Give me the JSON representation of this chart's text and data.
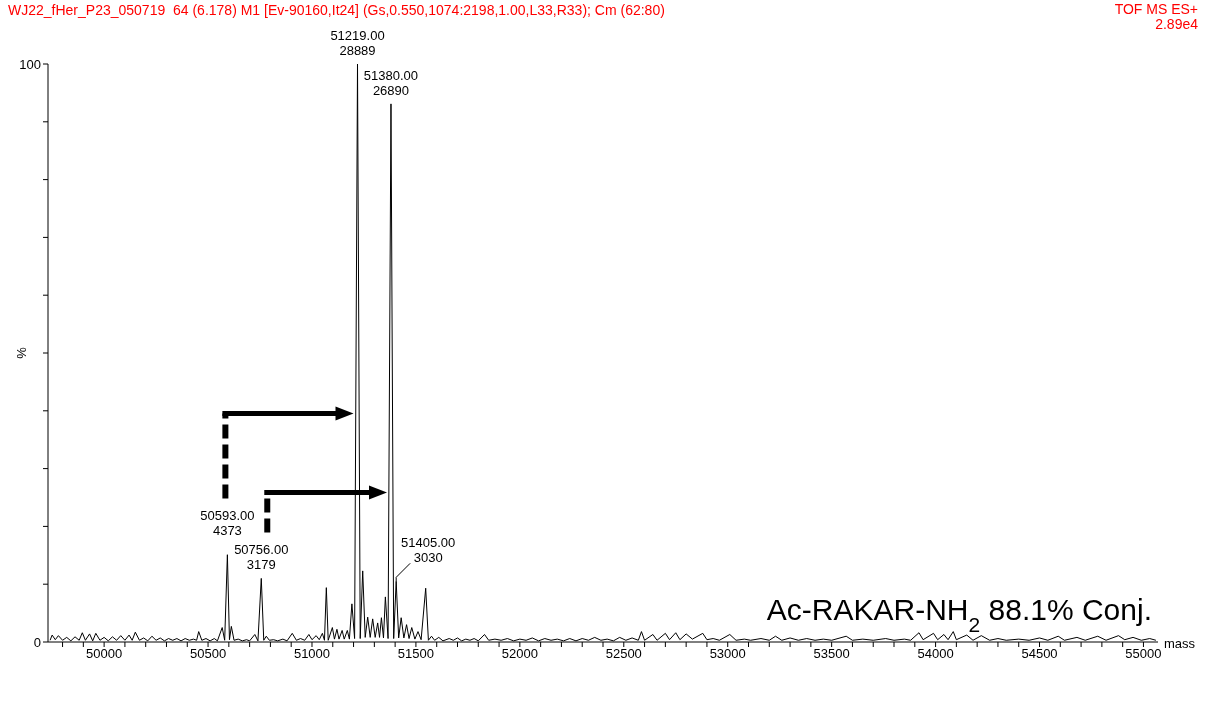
{
  "chart_data": {
    "type": "line",
    "title": "WJ22_fHer_P23_050719  64 (6.178) M1 [Ev-90160,It24] (Gs,0.550,1074:2198,1.00,L33,R33); Cm (62:80)",
    "xlabel": "mass",
    "ylabel": "%",
    "color": "#000000",
    "marker": "none",
    "line_style": "solid",
    "xlim": [
      49730,
      55070
    ],
    "ylim": [
      0,
      100
    ],
    "xticks": [
      {
        "value": 49800,
        "label": null
      },
      {
        "value": 49900,
        "label": null
      },
      50000,
      {
        "value": 50100,
        "label": null
      },
      {
        "value": 50200,
        "label": null
      },
      {
        "value": 50300,
        "label": null
      },
      {
        "value": 50400,
        "label": null
      },
      50500,
      {
        "value": 50600,
        "label": null
      },
      {
        "value": 50700,
        "label": null
      },
      {
        "value": 50800,
        "label": null
      },
      {
        "value": 50900,
        "label": null
      },
      51000,
      {
        "value": 51100,
        "label": null
      },
      {
        "value": 51200,
        "label": null
      },
      {
        "value": 51300,
        "label": null
      },
      {
        "value": 51400,
        "label": null
      },
      51500,
      {
        "value": 51600,
        "label": null
      },
      {
        "value": 51700,
        "label": null
      },
      {
        "value": 51800,
        "label": null
      },
      {
        "value": 51900,
        "label": null
      },
      52000,
      {
        "value": 52100,
        "label": null
      },
      {
        "value": 52200,
        "label": null
      },
      {
        "value": 52300,
        "label": null
      },
      {
        "value": 52400,
        "label": null
      },
      52500,
      {
        "value": 52600,
        "label": null
      },
      {
        "value": 52700,
        "label": null
      },
      {
        "value": 52800,
        "label": null
      },
      {
        "value": 52900,
        "label": null
      },
      53000,
      {
        "value": 53100,
        "label": null
      },
      {
        "value": 53200,
        "label": null
      },
      {
        "value": 53300,
        "label": null
      },
      {
        "value": 53400,
        "label": null
      },
      53500,
      {
        "value": 53600,
        "label": null
      },
      {
        "value": 53700,
        "label": null
      },
      {
        "value": 53800,
        "label": null
      },
      {
        "value": 53900,
        "label": null
      },
      54000,
      {
        "value": 54100,
        "label": null
      },
      {
        "value": 54200,
        "label": null
      },
      {
        "value": 54300,
        "label": null
      },
      {
        "value": 54400,
        "label": null
      },
      54500,
      {
        "value": 54600,
        "label": null
      },
      {
        "value": 54700,
        "label": null
      },
      {
        "value": 54800,
        "label": null
      },
      {
        "value": 54900,
        "label": null
      },
      55000
    ],
    "yticks": [
      0,
      {
        "value": 10,
        "label": null
      },
      {
        "value": 20,
        "label": null
      },
      {
        "value": 30,
        "label": null
      },
      {
        "value": 40,
        "label": null
      },
      {
        "value": 50,
        "label": null
      },
      {
        "value": 60,
        "label": null
      },
      {
        "value": 70,
        "label": null
      },
      {
        "value": 80,
        "label": null
      },
      {
        "value": 90,
        "label": null
      },
      100
    ],
    "x": [
      49740,
      49750,
      49765,
      49780,
      49800,
      49820,
      49840,
      49860,
      49880,
      49895,
      49910,
      49930,
      49945,
      49960,
      49980,
      50000,
      50020,
      50040,
      50060,
      50080,
      50100,
      50120,
      50135,
      50150,
      50170,
      50190,
      50210,
      50230,
      50250,
      50270,
      50290,
      50310,
      50330,
      50350,
      50370,
      50390,
      50410,
      50430,
      50445,
      50455,
      50470,
      50490,
      50510,
      50530,
      50545,
      50568,
      50580,
      50593,
      50603,
      50612,
      50625,
      50645,
      50665,
      50685,
      50700,
      50725,
      50740,
      50756,
      50768,
      50780,
      50795,
      50815,
      50835,
      50860,
      50880,
      50905,
      50925,
      50945,
      50965,
      50985,
      51000,
      51020,
      51035,
      51050,
      51060,
      51069,
      51078,
      51098,
      51108,
      51120,
      51130,
      51145,
      51155,
      51170,
      51180,
      51192,
      51205,
      51219,
      51232,
      51244,
      51256,
      51268,
      51280,
      51292,
      51304,
      51316,
      51325,
      51334,
      51344,
      51353,
      51366,
      51380,
      51393,
      51405,
      51417,
      51429,
      51442,
      51455,
      51467,
      51480,
      51495,
      51510,
      51525,
      51547,
      51560,
      51575,
      51590,
      51610,
      51630,
      51660,
      51680,
      51700,
      51720,
      51740,
      51760,
      51780,
      51800,
      51830,
      51850,
      51880,
      51910,
      51940,
      51970,
      52000,
      52030,
      52060,
      52090,
      52120,
      52150,
      52180,
      52210,
      52240,
      52270,
      52300,
      52330,
      52360,
      52390,
      52420,
      52450,
      52480,
      52510,
      52540,
      52570,
      52585,
      52600,
      52640,
      52660,
      52700,
      52720,
      52750,
      52770,
      52800,
      52830,
      52880,
      52900,
      52930,
      52960,
      53010,
      53040,
      53080,
      53110,
      53160,
      53200,
      53230,
      53260,
      53300,
      53340,
      53380,
      53420,
      53460,
      53500,
      53570,
      53600,
      53650,
      53700,
      53760,
      53800,
      53850,
      53880,
      53920,
      53940,
      53990,
      54010,
      54040,
      54060,
      54085,
      54100,
      54150,
      54180,
      54220,
      54260,
      54300,
      54340,
      54400,
      54450,
      54500,
      54540,
      54590,
      54620,
      54680,
      54720,
      54780,
      54820,
      54880,
      54910,
      54950,
      54990,
      55030,
      55060
    ],
    "values": [
      0.3,
      1.2,
      0.4,
      1.1,
      0.3,
      0.8,
      0.2,
      0.9,
      0.3,
      1.6,
      0.3,
      1.4,
      0.2,
      1.5,
      0.3,
      0.8,
      0.2,
      0.9,
      0.3,
      1.1,
      0.3,
      1.2,
      0.3,
      1.7,
      0.3,
      0.7,
      0.2,
      1.0,
      0.3,
      0.7,
      0.2,
      0.6,
      0.3,
      0.6,
      0.2,
      0.6,
      0.3,
      0.5,
      0.3,
      1.8,
      0.3,
      0.6,
      0.2,
      0.6,
      0.2,
      2.5,
      0.3,
      15.1,
      0.4,
      2.7,
      0.3,
      0.5,
      0.2,
      0.4,
      0.2,
      1.3,
      0.2,
      11.0,
      0.3,
      1.0,
      0.3,
      0.4,
      0.2,
      0.5,
      0.2,
      1.5,
      0.3,
      0.6,
      0.3,
      1.3,
      0.4,
      1.1,
      0.4,
      1.5,
      0.3,
      9.4,
      0.3,
      2.5,
      0.5,
      2.2,
      0.5,
      2.0,
      0.5,
      2.0,
      0.5,
      6.6,
      0.6,
      100,
      0.6,
      12.3,
      0.8,
      4.3,
      0.8,
      4.0,
      0.8,
      3.3,
      0.8,
      4.2,
      0.7,
      7.8,
      0.6,
      93.1,
      0.6,
      10.5,
      0.7,
      4.2,
      0.7,
      3.0,
      0.6,
      2.5,
      0.5,
      1.8,
      0.4,
      9.3,
      0.3,
      1.0,
      0.3,
      0.8,
      0.2,
      0.6,
      0.3,
      0.7,
      0.2,
      0.5,
      0.3,
      0.6,
      0.2,
      1.3,
      0.3,
      0.5,
      0.3,
      0.6,
      0.2,
      0.5,
      0.3,
      0.7,
      0.2,
      0.6,
      0.3,
      0.5,
      0.2,
      0.6,
      0.2,
      0.6,
      0.3,
      0.8,
      0.3,
      0.5,
      0.2,
      0.8,
      0.3,
      0.7,
      0.3,
      1.8,
      0.3,
      1.3,
      0.3,
      1.5,
      0.4,
      1.6,
      0.4,
      1.4,
      0.5,
      1.5,
      0.4,
      0.6,
      0.3,
      1.3,
      0.3,
      0.5,
      0.3,
      0.6,
      0.3,
      1.0,
      0.3,
      0.7,
      0.3,
      0.6,
      0.3,
      0.5,
      0.3,
      1.0,
      0.3,
      0.5,
      0.3,
      0.6,
      0.3,
      0.5,
      0.3,
      1.6,
      0.4,
      1.5,
      0.4,
      1.3,
      0.4,
      1.8,
      0.4,
      1.2,
      0.3,
      1.1,
      0.3,
      0.6,
      0.3,
      0.5,
      0.3,
      0.7,
      0.3,
      1.0,
      0.3,
      0.8,
      0.3,
      1.0,
      0.3,
      1.1,
      0.4,
      0.8,
      0.3,
      0.6,
      0.3
    ],
    "annotations": [
      {
        "text": "51219.00\n28889",
        "x": 51219,
        "y": 100
      },
      {
        "text": "51380.00\n26890",
        "x": 51380,
        "y": 93.1
      },
      {
        "text": "50593.00\n4373",
        "x": 50593,
        "y": 15.1
      },
      {
        "text": "50756.00\n3179",
        "x": 50756,
        "y": 11.0
      },
      {
        "text": "51405.00\n3030",
        "x": 51405,
        "y": 10.5
      },
      "TOF MS ES+\n2.89e4",
      "Ac-RAKAR-NH$_{2}$ 88.1% Conj."
    ]
  }
}
